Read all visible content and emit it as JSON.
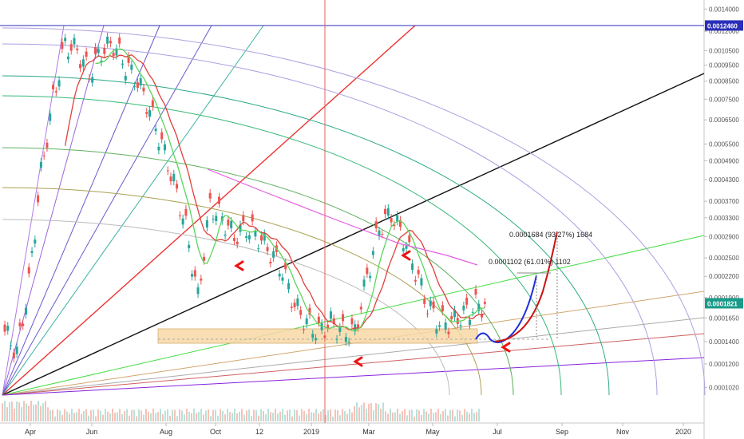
{
  "chart_data": {
    "type": "line",
    "title": "",
    "y_scale": "log",
    "ylim": [
      9e-05,
      0.00145
    ],
    "y_ticks": [
      "0.0014000",
      "0.0012000",
      "0.0010500",
      "0.0009500",
      "0.0008500",
      "0.0007500",
      "0.0006500",
      "0.0005500",
      "0.0004900",
      "0.0004300",
      "0.0003700",
      "0.0003300",
      "0.0002900",
      "0.0002500",
      "0.0002200",
      "0.0001900",
      "0.0001650",
      "0.0001400",
      "0.0001200",
      "0.0001020"
    ],
    "x_ticks": [
      "Apr",
      "Jun",
      "Aug",
      "Oct",
      "12",
      "2019",
      "Mar",
      "May",
      "Jul",
      "Sep",
      "Nov",
      "2020"
    ],
    "price_badges": [
      {
        "label": "0.0012460",
        "value": 0.001246,
        "color": "#2a2eb8"
      },
      {
        "label": "0.0001821",
        "value": 0.0001821,
        "color": "#1a9a8a"
      }
    ],
    "annotations": [
      {
        "text": "0.0001684 (93.27%) 1684"
      },
      {
        "text": "0.0001102 (61.01%) 1102"
      }
    ],
    "series": [
      {
        "values": [
          0.00015,
          0.00013,
          0.00021,
          0.00045,
          0.00075,
          0.0011,
          0.00105,
          0.0009,
          0.00105,
          0.0011,
          0.00095,
          0.00085,
          0.0007,
          0.00055,
          0.00042,
          0.00031,
          0.00019,
          0.00036,
          0.00033,
          0.00029,
          0.00031,
          0.00029,
          0.00026,
          0.00023,
          0.00018,
          0.00016,
          0.00015,
          0.00016,
          0.00015,
          0.00015,
          0.00022,
          0.00031,
          0.00034,
          0.00029,
          0.00023,
          0.00018,
          0.00016,
          0.00016,
          0.00017,
          0.00018
        ]
      }
    ],
    "colors": {
      "candle_up": "#26a69a",
      "candle_down": "#ef5350",
      "ma_red": "#e0403a",
      "ma_green": "#5bd65b",
      "ma_magenta": "#e25ce0",
      "trend_black": "#111111",
      "trend_green": "#44dd44",
      "trend_purple": "#8822dd",
      "trend_red": "#ee2222",
      "projection_blue": "#1f2fd8",
      "projection_red": "#cc1111",
      "support_zone": "#f8d9a8"
    }
  }
}
